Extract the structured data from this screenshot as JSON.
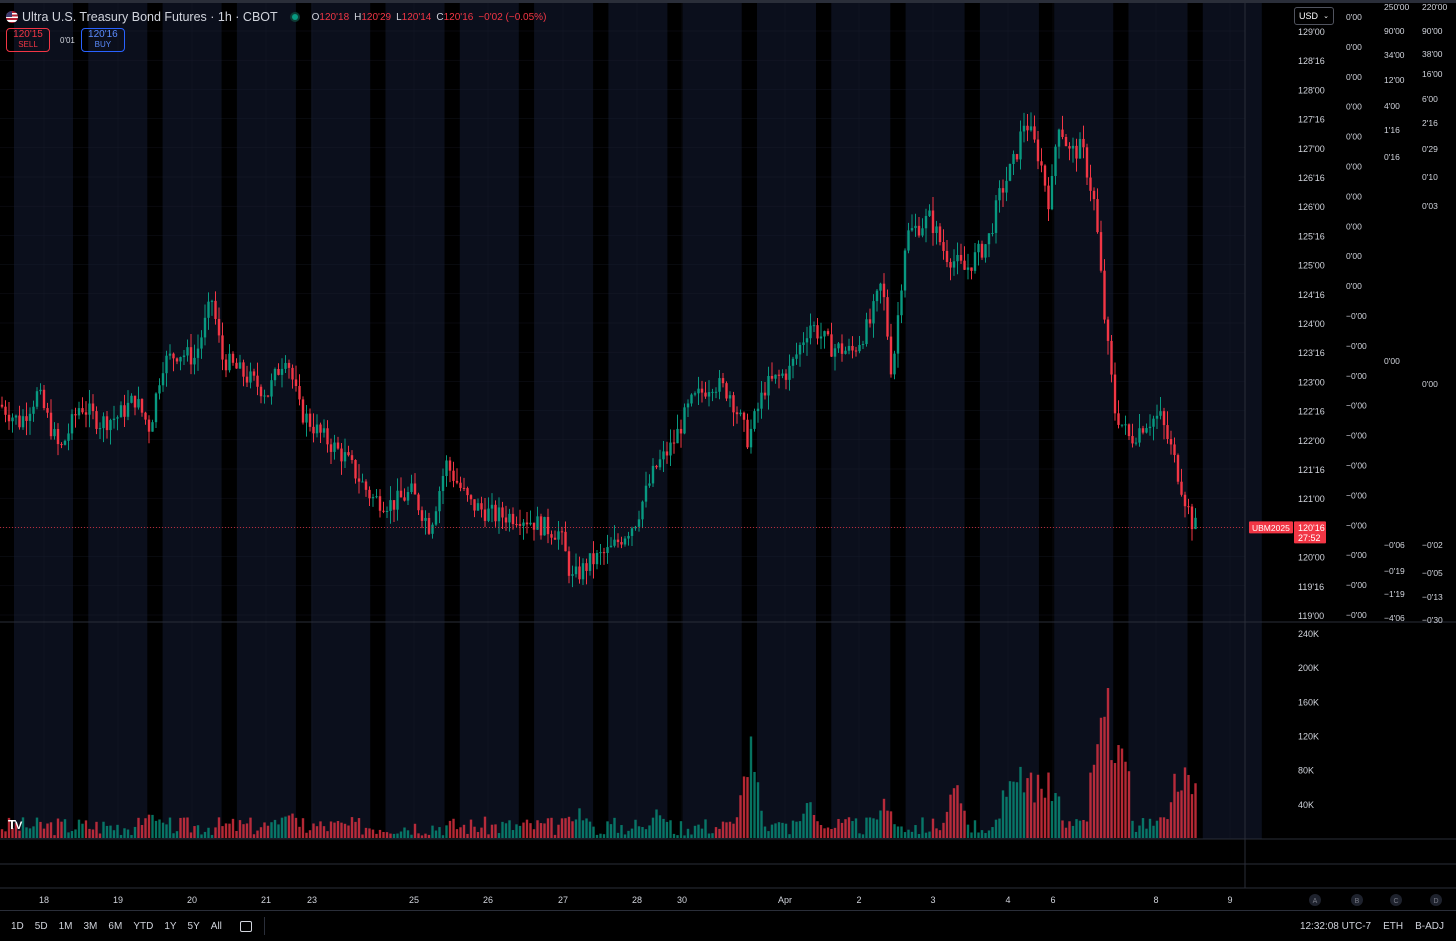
{
  "header": {
    "title": "Ultra U.S. Treasury Bond Futures · 1h · CBOT",
    "o_label": "O",
    "o_value": "120'18",
    "h_label": "H",
    "h_value": "120'29",
    "l_label": "L",
    "l_value": "120'14",
    "c_label": "C",
    "c_value": "120'16",
    "change": "−0'02 (−0.05%)"
  },
  "trade": {
    "sell_price": "120'15",
    "sell_label": "SELL",
    "spread": "0'01",
    "buy_price": "120'16",
    "buy_label": "BUY"
  },
  "currency": "USD",
  "colors": {
    "up": "#089981",
    "down": "#f23645",
    "session_band": "#0b0f1c",
    "grid": "#1c2030"
  },
  "chart_data": {
    "type": "candlestick",
    "symbol_label": "UBM2025",
    "last_price": "120'16",
    "countdown": "27:52",
    "y_ticks": [
      "129'00",
      "128'16",
      "128'00",
      "127'16",
      "127'00",
      "126'16",
      "126'00",
      "125'16",
      "125'00",
      "124'16",
      "124'00",
      "123'16",
      "123'00",
      "122'16",
      "122'00",
      "121'16",
      "121'00",
      "120'16",
      "120'00",
      "119'16",
      "119'00"
    ],
    "ylim": [
      119.0,
      129.0
    ],
    "last_value": 120.5,
    "close_path_anchors": [
      [
        0,
        122.6
      ],
      [
        20,
        122.3
      ],
      [
        38,
        122.8
      ],
      [
        60,
        121.8
      ],
      [
        80,
        122.6
      ],
      [
        100,
        122.3
      ],
      [
        118,
        122.4
      ],
      [
        135,
        122.7
      ],
      [
        150,
        122.2
      ],
      [
        162,
        123.3
      ],
      [
        178,
        123.5
      ],
      [
        195,
        123.4
      ],
      [
        212,
        124.4
      ],
      [
        222,
        123.4
      ],
      [
        245,
        123.1
      ],
      [
        268,
        122.8
      ],
      [
        286,
        123.5
      ],
      [
        300,
        122.5
      ],
      [
        320,
        122.1
      ],
      [
        345,
        121.7
      ],
      [
        372,
        121.0
      ],
      [
        392,
        120.9
      ],
      [
        412,
        121.1
      ],
      [
        430,
        120.5
      ],
      [
        446,
        121.6
      ],
      [
        470,
        120.9
      ],
      [
        495,
        120.7
      ],
      [
        520,
        120.7
      ],
      [
        545,
        120.5
      ],
      [
        560,
        120.4
      ],
      [
        572,
        119.6
      ],
      [
        590,
        119.9
      ],
      [
        610,
        120.1
      ],
      [
        635,
        120.6
      ],
      [
        655,
        121.5
      ],
      [
        672,
        121.9
      ],
      [
        690,
        122.6
      ],
      [
        712,
        123.0
      ],
      [
        730,
        122.8
      ],
      [
        748,
        122.0
      ],
      [
        765,
        122.9
      ],
      [
        790,
        123.2
      ],
      [
        810,
        124.0
      ],
      [
        830,
        123.6
      ],
      [
        852,
        123.5
      ],
      [
        870,
        124.0
      ],
      [
        882,
        124.7
      ],
      [
        892,
        123.1
      ],
      [
        906,
        125.5
      ],
      [
        930,
        125.8
      ],
      [
        945,
        125.2
      ],
      [
        965,
        124.9
      ],
      [
        988,
        125.4
      ],
      [
        1000,
        126.2
      ],
      [
        1015,
        126.8
      ],
      [
        1025,
        127.5
      ],
      [
        1040,
        126.8
      ],
      [
        1050,
        126.0
      ],
      [
        1058,
        127.5
      ],
      [
        1070,
        126.9
      ],
      [
        1082,
        127.0
      ],
      [
        1095,
        126.0
      ],
      [
        1105,
        124.0
      ],
      [
        1115,
        122.5
      ],
      [
        1130,
        122.0
      ],
      [
        1145,
        122.3
      ],
      [
        1160,
        122.4
      ],
      [
        1172,
        121.8
      ],
      [
        1185,
        121.0
      ],
      [
        1192,
        120.6
      ],
      [
        1196,
        120.5
      ]
    ],
    "volume_ticks": [
      "240K",
      "200K",
      "160K",
      "120K",
      "80K",
      "40K"
    ],
    "volume_ylim": [
      0,
      240000
    ],
    "volume_spikes": [
      [
        152,
        38000
      ],
      [
        288,
        40000
      ],
      [
        580,
        40000
      ],
      [
        658,
        45000
      ],
      [
        750,
        128000
      ],
      [
        808,
        55000
      ],
      [
        884,
        58000
      ],
      [
        955,
        72000
      ],
      [
        1025,
        90000
      ],
      [
        1105,
        225000
      ],
      [
        1188,
        100000
      ]
    ],
    "x_labels": [
      {
        "t": "18",
        "px": 44
      },
      {
        "t": "19",
        "px": 118
      },
      {
        "t": "20",
        "px": 192
      },
      {
        "t": "21",
        "px": 266
      },
      {
        "t": "23",
        "px": 312
      },
      {
        "t": "25",
        "px": 414
      },
      {
        "t": "26",
        "px": 488
      },
      {
        "t": "27",
        "px": 563
      },
      {
        "t": "28",
        "px": 637
      },
      {
        "t": "30",
        "px": 682
      },
      {
        "t": "Apr",
        "px": 785
      },
      {
        "t": "2",
        "px": 859
      },
      {
        "t": "3",
        "px": 933
      },
      {
        "t": "4",
        "px": 1008
      },
      {
        "t": "6",
        "px": 1053
      },
      {
        "t": "8",
        "px": 1156
      },
      {
        "t": "9",
        "px": 1230
      }
    ],
    "scale_col1": [
      "0'00",
      "0'00",
      "0'00",
      "0'00",
      "0'00",
      "0'00",
      "0'00",
      "0'00",
      "0'00",
      "0'00",
      "−0'00",
      "−0'00",
      "−0'00",
      "−0'00",
      "−0'00",
      "−0'00",
      "−0'00",
      "−0'00",
      "−0'00",
      "−0'00",
      "−0'00"
    ],
    "scale_col2": [
      "250'00",
      "90'00",
      "34'00",
      "12'00",
      "4'00",
      "1'16",
      "0'16",
      "0'00",
      "−0'06",
      "−0'19",
      "−1'19",
      "−4'06"
    ],
    "scale_col3": [
      "220'00",
      "90'00",
      "38'00",
      "16'00",
      "6'00",
      "2'16",
      "0'29",
      "0'10",
      "0'03",
      "0'00",
      "−0'02",
      "−0'05",
      "−0'13",
      "−0'30"
    ],
    "markers": [
      "A",
      "B",
      "C",
      "D"
    ]
  },
  "bottom": {
    "ranges": [
      "1D",
      "5D",
      "1M",
      "3M",
      "6M",
      "YTD",
      "1Y",
      "5Y",
      "All"
    ],
    "clock": "12:32:08 UTC-7",
    "session": "ETH",
    "adj": "B-ADJ"
  }
}
